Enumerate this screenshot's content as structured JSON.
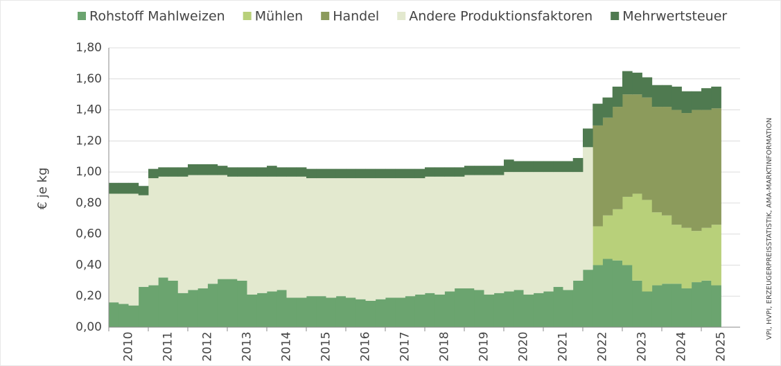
{
  "chart_data": {
    "type": "stacked_area",
    "y_label": "€ je kg",
    "source": "VPI, HVPI, ERZEUGERPREISSTATISTIK, AMA-MARKTINFORMATION",
    "categories": [
      null,
      "2010",
      null,
      null,
      null,
      "2011",
      null,
      null,
      null,
      "2012",
      null,
      null,
      null,
      "2013",
      null,
      null,
      null,
      "2014",
      null,
      null,
      null,
      "2015",
      null,
      null,
      null,
      "2016",
      null,
      null,
      null,
      "2017",
      null,
      null,
      null,
      "2018",
      null,
      null,
      null,
      "2019",
      null,
      null,
      null,
      "2020",
      null,
      null,
      null,
      "2021",
      null,
      null,
      null,
      "2022",
      null,
      null,
      null,
      "2023",
      null,
      null,
      null,
      "2024",
      null,
      null,
      null,
      "2025"
    ],
    "series": [
      {
        "name": "Rohstoff Mahlweizen",
        "color": "#6ba46f",
        "values": [
          0.16,
          0.15,
          0.14,
          0.26,
          0.27,
          0.32,
          0.3,
          0.22,
          0.24,
          0.25,
          0.28,
          0.31,
          0.31,
          0.3,
          0.21,
          0.22,
          0.23,
          0.24,
          0.19,
          0.19,
          0.2,
          0.2,
          0.19,
          0.2,
          0.19,
          0.18,
          0.17,
          0.18,
          0.19,
          0.19,
          0.2,
          0.21,
          0.22,
          0.21,
          0.23,
          0.25,
          0.25,
          0.24,
          0.21,
          0.22,
          0.23,
          0.24,
          0.21,
          0.22,
          0.23,
          0.26,
          0.24,
          0.3,
          0.37,
          0.4,
          0.44,
          0.43,
          0.4,
          0.3,
          0.23,
          0.27,
          0.28,
          0.28,
          0.25,
          0.29,
          0.3,
          0.27
        ]
      },
      {
        "name": "Mühlen",
        "color": "#b8d07a",
        "values": [
          0,
          0,
          0,
          0,
          0,
          0,
          0,
          0,
          0,
          0,
          0,
          0,
          0,
          0,
          0,
          0,
          0,
          0,
          0,
          0,
          0,
          0,
          0,
          0,
          0,
          0,
          0,
          0,
          0,
          0,
          0,
          0,
          0,
          0,
          0,
          0,
          0,
          0,
          0,
          0,
          0,
          0,
          0,
          0,
          0,
          0,
          0,
          0,
          0,
          0.25,
          0.28,
          0.33,
          0.44,
          0.56,
          0.59,
          0.47,
          0.44,
          0.38,
          0.39,
          0.33,
          0.34,
          0.39
        ]
      },
      {
        "name": "Handel",
        "color": "#8c9b5c",
        "values": [
          0,
          0,
          0,
          0,
          0,
          0,
          0,
          0,
          0,
          0,
          0,
          0,
          0,
          0,
          0,
          0,
          0,
          0,
          0,
          0,
          0,
          0,
          0,
          0,
          0,
          0,
          0,
          0,
          0,
          0,
          0,
          0,
          0,
          0,
          0,
          0,
          0,
          0,
          0,
          0,
          0,
          0,
          0,
          0,
          0,
          0,
          0,
          0,
          0,
          0.65,
          0.63,
          0.66,
          0.66,
          0.64,
          0.66,
          0.68,
          0.7,
          0.74,
          0.74,
          0.78,
          0.76,
          0.75
        ]
      },
      {
        "name": "Andere Produktionsfaktoren",
        "color": "#e3e9cf",
        "values": [
          0.7,
          0.71,
          0.72,
          0.59,
          0.69,
          0.65,
          0.67,
          0.75,
          0.74,
          0.73,
          0.7,
          0.67,
          0.66,
          0.67,
          0.76,
          0.75,
          0.74,
          0.73,
          0.78,
          0.78,
          0.76,
          0.76,
          0.77,
          0.76,
          0.77,
          0.78,
          0.79,
          0.78,
          0.77,
          0.77,
          0.76,
          0.75,
          0.75,
          0.76,
          0.74,
          0.72,
          0.73,
          0.74,
          0.77,
          0.76,
          0.77,
          0.76,
          0.79,
          0.78,
          0.77,
          0.74,
          0.76,
          0.7,
          0.79,
          0,
          0,
          0,
          0,
          0,
          0,
          0,
          0,
          0,
          0,
          0,
          0,
          0
        ]
      },
      {
        "name": "Mehrwertsteuer",
        "color": "#4f7a50",
        "values": [
          0.07,
          0.07,
          0.07,
          0.06,
          0.06,
          0.06,
          0.06,
          0.06,
          0.07,
          0.07,
          0.07,
          0.06,
          0.06,
          0.06,
          0.06,
          0.06,
          0.07,
          0.06,
          0.06,
          0.06,
          0.06,
          0.06,
          0.06,
          0.06,
          0.06,
          0.06,
          0.06,
          0.06,
          0.06,
          0.06,
          0.06,
          0.06,
          0.06,
          0.06,
          0.06,
          0.06,
          0.06,
          0.06,
          0.06,
          0.06,
          0.08,
          0.07,
          0.07,
          0.07,
          0.07,
          0.07,
          0.07,
          0.09,
          0.12,
          0.14,
          0.13,
          0.13,
          0.15,
          0.14,
          0.13,
          0.14,
          0.14,
          0.15,
          0.14,
          0.12,
          0.14,
          0.14
        ]
      }
    ],
    "ylim": [
      0,
      1.8
    ],
    "yticks": [
      {
        "value": 0,
        "label": "0,00"
      },
      {
        "value": 0.2,
        "label": "0,20"
      },
      {
        "value": 0.4,
        "label": "0,40"
      },
      {
        "value": 0.6,
        "label": "0,60"
      },
      {
        "value": 0.8,
        "label": "0,80"
      },
      {
        "value": 1.0,
        "label": "1,00"
      },
      {
        "value": 1.2,
        "label": "1,20"
      },
      {
        "value": 1.4,
        "label": "1,40"
      },
      {
        "value": 1.6,
        "label": "1,60"
      },
      {
        "value": 1.8,
        "label": "1,80"
      }
    ],
    "grid": true
  }
}
